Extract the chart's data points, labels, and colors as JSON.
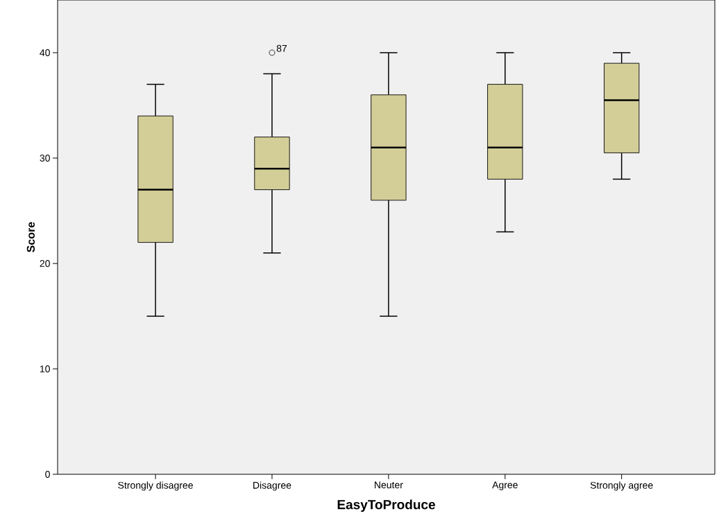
{
  "chart_data": {
    "type": "box",
    "xlabel": "EasyToProduce",
    "ylabel": "Score",
    "categories": [
      "Strongly disagree",
      "Disagree",
      "Neuter",
      "Agree",
      "Strongly agree"
    ],
    "color": "#d3ce97",
    "boxes": [
      {
        "low": 15,
        "q1": 22,
        "median": 27,
        "q3": 34,
        "high": 37
      },
      {
        "low": 21,
        "q1": 27,
        "median": 29,
        "q3": 32,
        "high": 38,
        "outliers": [
          40
        ]
      },
      {
        "low": 15,
        "q1": 26,
        "median": 31,
        "q3": 36,
        "high": 40
      },
      {
        "low": 23,
        "q1": 28,
        "median": 31,
        "q3": 37,
        "high": 40
      },
      {
        "low": 28,
        "q1": 30.5,
        "median": 35.5,
        "q3": 39,
        "high": 40
      }
    ],
    "ylim": [
      0,
      45
    ],
    "yticks": [
      0,
      10,
      20,
      30,
      40
    ],
    "annotations": [
      "87"
    ]
  }
}
